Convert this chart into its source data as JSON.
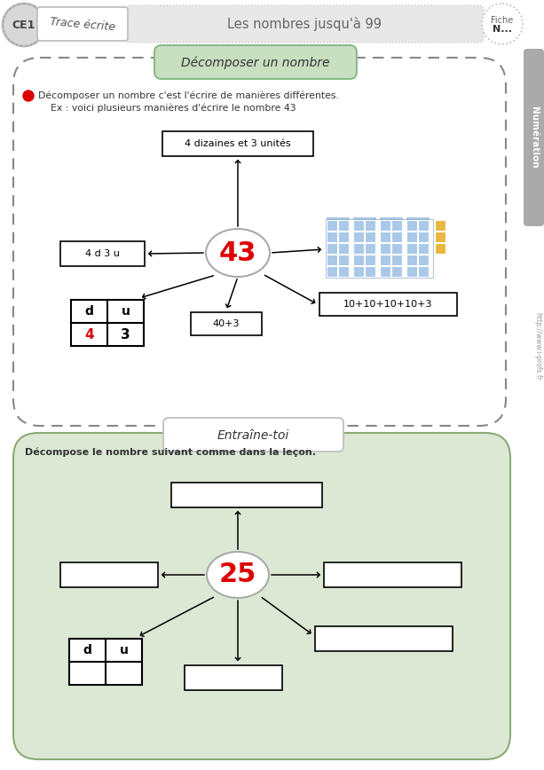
{
  "title_main": "Les nombres jusqu'à 99",
  "subtitle1": "Décomposer un nombre",
  "subtitle2": "Entraîne-toi",
  "ce1_label": "CE1",
  "trace_ecrite": "Trace écrite",
  "fiche_line1": "Fiche",
  "fiche_line2": "N...",
  "numerotation_label": "Numération",
  "url_label": "http://www.i-profs.fr",
  "instruction1": "Décomposer un nombre c'est l'écrire de manières différentes.",
  "instruction1b": "    Ex : voici plusieurs manières d'écrire le nombre 43",
  "instruction2": "Décompose le nombre suivant comme dans la leçon.",
  "center_num1": "43",
  "center_num2": "25",
  "box1_top": "4 dizaines et 3 unités",
  "box1_left": "4 d 3 u",
  "box1_bottom": "40+3",
  "box1_bottomright": "10+10+10+10+3",
  "bg_main": "#ffffff",
  "bg_section2": "#dce8d4",
  "bg_subtitle1": "#c8dfc0",
  "dashed_border": "#888888",
  "section2_border": "#8aaa78",
  "header_bg": "#e8e8e8",
  "header_border": "#cccccc",
  "red_color": "#dd0000",
  "blue_block_color": "#aac8e8",
  "yellow_block_color": "#e8b840",
  "arrow_color": "#222222",
  "tab_bg": "#aaaaaa"
}
